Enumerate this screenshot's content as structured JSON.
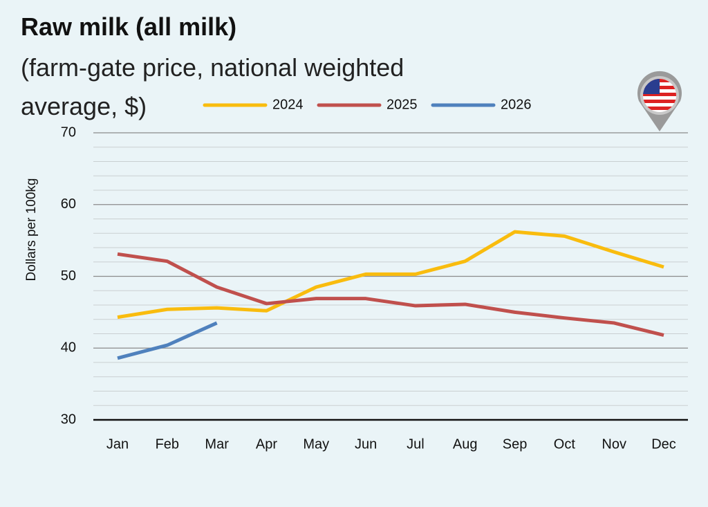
{
  "chart_data": {
    "type": "line",
    "title": "Raw milk (all milk)",
    "subtitle": "(farm-gate price, national weighted average, $)",
    "y_label": "Dollars per 100kg",
    "categories": [
      "Jan",
      "Feb",
      "Mar",
      "Apr",
      "May",
      "Jun",
      "Jul",
      "Aug",
      "Sep",
      "Oct",
      "Nov",
      "Dec"
    ],
    "series": [
      {
        "name": "2024",
        "color": "#f9bc0e",
        "values": [
          44.3,
          45.4,
          45.6,
          45.2,
          48.5,
          50.3,
          50.3,
          52.1,
          56.2,
          55.6,
          53.4,
          51.3
        ]
      },
      {
        "name": "2025",
        "color": "#c0504d",
        "values": [
          53.1,
          52.1,
          48.5,
          46.2,
          46.9,
          46.9,
          45.9,
          46.1,
          45.0,
          44.2,
          43.5,
          41.8
        ]
      },
      {
        "name": "2026",
        "color": "#4f81bd",
        "values": [
          38.6,
          40.4,
          43.5,
          null,
          null,
          null,
          null,
          null,
          null,
          null,
          null,
          null
        ]
      }
    ],
    "ylim": [
      30,
      70
    ],
    "yticks": [
      30,
      40,
      50,
      60,
      70
    ],
    "grid": true,
    "legend": "top"
  }
}
